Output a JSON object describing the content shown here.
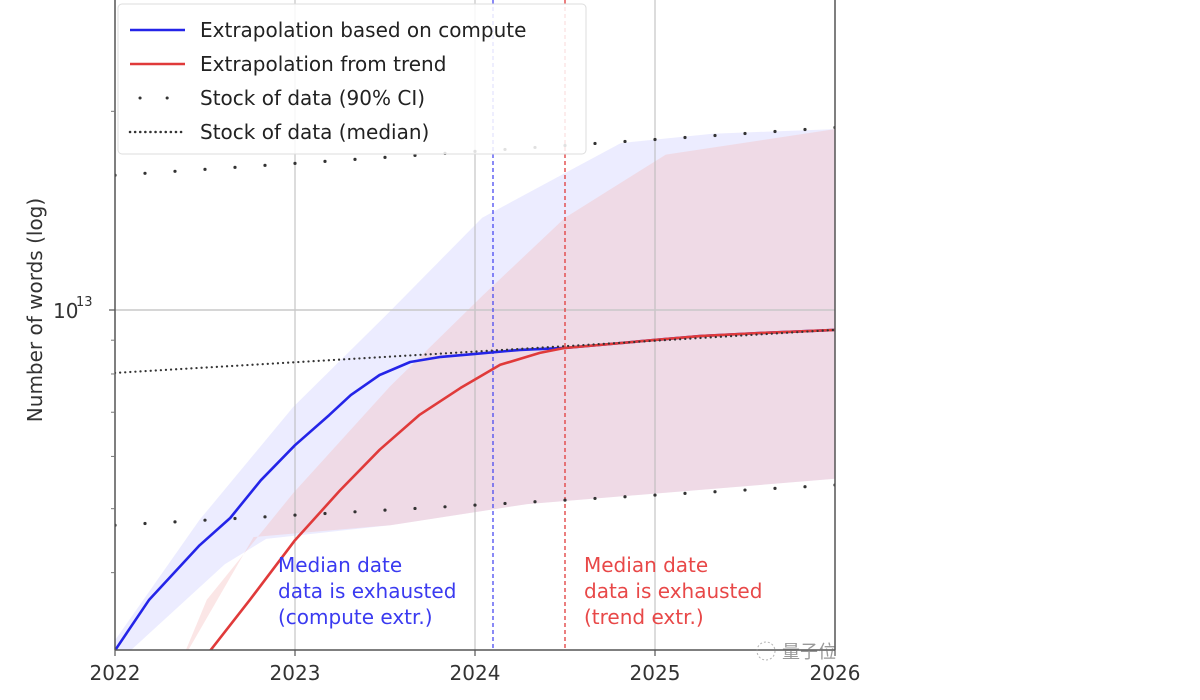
{
  "chart_data": {
    "type": "line",
    "title": "",
    "xlabel": "",
    "ylabel": "Number of words (log)",
    "yscale": "log",
    "xlim": [
      2022,
      2026
    ],
    "ylim": [
      3050000000000.0,
      29500000000000.0
    ],
    "x_ticks": [
      "2022",
      "2023",
      "2024",
      "2025",
      "2026"
    ],
    "x_tick_values": [
      2022,
      2023,
      2024,
      2025,
      2026
    ],
    "y_ticks": [
      {
        "value": 10000000000000.0,
        "base": "10",
        "exp": "13"
      }
    ],
    "grid": true,
    "legend": {
      "placement": "top-left",
      "entries": [
        {
          "label": "Extrapolation based on compute",
          "style": "solid",
          "color": "#2424e8"
        },
        {
          "label": "Extrapolation from trend",
          "style": "solid",
          "color": "#e03a3a"
        },
        {
          "label": "Stock of data (90% CI)",
          "style": "sparse-dots",
          "color": "#333333"
        },
        {
          "label": "Stock of data (median)",
          "style": "dotted",
          "color": "#333333"
        }
      ]
    },
    "series": [
      {
        "name": "Extrapolation based on compute",
        "color": "#2424e8",
        "x": [
          2022,
          2022.19,
          2022.47,
          2022.64,
          2022.81,
          2023,
          2023.19,
          2023.31,
          2023.47,
          2023.64,
          2023.81,
          2024,
          2024.25,
          2024.5,
          2024.69,
          2025,
          2025.25,
          2025.58,
          2026
        ],
        "y": [
          3050000000000.0,
          3640000000000.0,
          4400000000000.0,
          4840000000000.0,
          5520000000000.0,
          6240000000000.0,
          6930000000000.0,
          7430000000000.0,
          7970000000000.0,
          8340000000000.0,
          8490000000000.0,
          8580000000000.0,
          8700000000000.0,
          8760000000000.0,
          8850000000000.0,
          9010000000000.0,
          9130000000000.0,
          9230000000000.0,
          9330000000000.0
        ]
      },
      {
        "name": "Extrapolation from trend",
        "color": "#e03a3a",
        "x": [
          2022.53,
          2022.75,
          2023,
          2023.25,
          2023.47,
          2023.69,
          2023.92,
          2024.14,
          2024.36,
          2024.5,
          2024.69,
          2025,
          2025.25,
          2025.58,
          2026
        ],
        "y": [
          3050000000000.0,
          3640000000000.0,
          4480000000000.0,
          5330000000000.0,
          6140000000000.0,
          6930000000000.0,
          7620000000000.0,
          8260000000000.0,
          8610000000000.0,
          8760000000000.0,
          8850000000000.0,
          9010000000000.0,
          9130000000000.0,
          9230000000000.0,
          9330000000000.0
        ]
      },
      {
        "name": "Stock of data (median)",
        "color": "#333333",
        "x": [
          2022,
          2024,
          2026
        ],
        "y": [
          8030000000000.0,
          8650000000000.0,
          9330000000000.0
        ]
      },
      {
        "name": "Stock of data (90% CI) upper",
        "color": "#333333",
        "x": [
          2022,
          2026
        ],
        "y": [
          16000000000000.0,
          18900000000000.0
        ]
      },
      {
        "name": "Stock of data (90% CI) lower",
        "color": "#333333",
        "x": [
          2022,
          2026
        ],
        "y": [
          4720000000000.0,
          5430000000000.0
        ]
      }
    ],
    "bands": [
      {
        "name": "compute extrapolation uncertainty",
        "color": "#c8c8ff",
        "upper": {
          "x": [
            2022,
            2022.47,
            2022.99,
            2023.53,
            2024.04,
            2024.55,
            2024.81,
            2025.32,
            2026
          ],
          "y": [
            3160000000000.0,
            4810000000000.0,
            7130000000000.0,
            9970000000000.0,
            13800000000000.0,
            16400000000000.0,
            17900000000000.0,
            18500000000000.0,
            18800000000000.0
          ]
        },
        "lower": {
          "x": [
            2022,
            2022.61,
            2022.84,
            2023.53,
            2024.29,
            2026
          ],
          "y": [
            2900000000000.0,
            4120000000000.0,
            4500000000000.0,
            4720000000000.0,
            5080000000000.0,
            5550000000000.0
          ]
        }
      },
      {
        "name": "trend extrapolation uncertainty",
        "color": "#f4c0c0",
        "upper": {
          "x": [
            2022.36,
            2022.51,
            2022.99,
            2023.53,
            2024.04,
            2024.5,
            2025.06,
            2026
          ],
          "y": [
            2900000000000.0,
            3640000000000.0,
            5280000000000.0,
            7670000000000.0,
            10500000000000.0,
            13800000000000.0,
            17200000000000.0,
            18800000000000.0
          ]
        },
        "lower": {
          "x": [
            2022.36,
            2022.77,
            2023.53,
            2024.29,
            2026
          ],
          "y": [
            2900000000000.0,
            4530000000000.0,
            4720000000000.0,
            5080000000000.0,
            5550000000000.0
          ]
        }
      }
    ],
    "vlines": [
      {
        "name": "compute-median-exhaustion",
        "x": 2024.1,
        "color": "#4a4af0"
      },
      {
        "name": "trend-median-exhaustion",
        "x": 2024.5,
        "color": "#e03a3a"
      }
    ],
    "annotations": [
      {
        "name": "compute-annotation",
        "color": "#3a3af0",
        "lines": [
          "Median date",
          "data is exhausted",
          "(compute extr.)"
        ]
      },
      {
        "name": "trend-annotation",
        "color": "#e84848",
        "lines": [
          "Median date",
          "data is exhausted",
          "(trend extr.)"
        ]
      }
    ]
  },
  "watermark": "量子位"
}
